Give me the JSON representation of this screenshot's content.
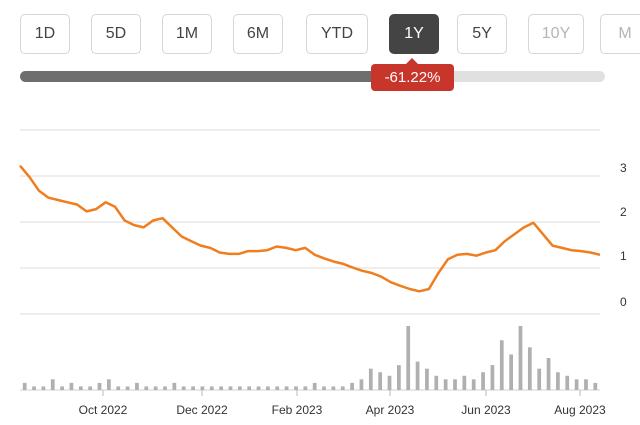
{
  "range_selector": {
    "buttons": [
      {
        "label": "1D",
        "state": "normal"
      },
      {
        "label": "5D",
        "state": "normal"
      },
      {
        "label": "1M",
        "state": "normal"
      },
      {
        "label": "6M",
        "state": "normal"
      },
      {
        "label": "YTD",
        "state": "normal"
      },
      {
        "label": "1Y",
        "state": "active"
      },
      {
        "label": "5Y",
        "state": "normal"
      },
      {
        "label": "10Y",
        "state": "disabled"
      },
      {
        "label": "M",
        "state": "disabled"
      }
    ]
  },
  "performance": {
    "change_label": "-61.22%",
    "progress_fraction": 0.635
  },
  "colors": {
    "price_line": "#f07d1e",
    "badge": "#c8352b",
    "active_button": "#444444",
    "volume": "#b0b0b0"
  },
  "chart_data": {
    "type": "line",
    "title": "",
    "xlabel": "",
    "ylabel": "",
    "x_ticks": [
      "Oct 2022",
      "Dec 2022",
      "Feb 2023",
      "Apr 2023",
      "Jun 2023",
      "Aug 2023"
    ],
    "y_ticks": [
      "3",
      "2",
      "1",
      "0"
    ],
    "ylim": [
      0,
      3
    ],
    "grid": true,
    "series": [
      {
        "values": [
          3.05,
          2.8,
          2.5,
          2.35,
          2.3,
          2.25,
          2.2,
          2.05,
          2.1,
          2.25,
          2.15,
          1.85,
          1.75,
          1.7,
          1.85,
          1.9,
          1.7,
          1.5,
          1.4,
          1.3,
          1.25,
          1.15,
          1.12,
          1.12,
          1.18,
          1.18,
          1.2,
          1.28,
          1.25,
          1.2,
          1.25,
          1.1,
          1.02,
          0.95,
          0.9,
          0.82,
          0.75,
          0.7,
          0.62,
          0.5,
          0.42,
          0.35,
          0.3,
          0.35,
          0.7,
          1.0,
          1.1,
          1.12,
          1.08,
          1.15,
          1.2,
          1.4,
          1.55,
          1.7,
          1.8,
          1.55,
          1.3,
          1.25,
          1.2,
          1.18,
          1.15,
          1.1
        ]
      }
    ],
    "volume": [
      2,
      1,
      1,
      3,
      1,
      2,
      1,
      1,
      2,
      3,
      1,
      1,
      2,
      1,
      1,
      1,
      2,
      1,
      1,
      1,
      1,
      1,
      1,
      1,
      1,
      1,
      1,
      1,
      1,
      1,
      1,
      2,
      1,
      1,
      1,
      2,
      3,
      6,
      5,
      4,
      7,
      18,
      8,
      6,
      4,
      3,
      3,
      4,
      3,
      5,
      7,
      14,
      10,
      18,
      12,
      6,
      9,
      5,
      4,
      3,
      3,
      2
    ]
  }
}
